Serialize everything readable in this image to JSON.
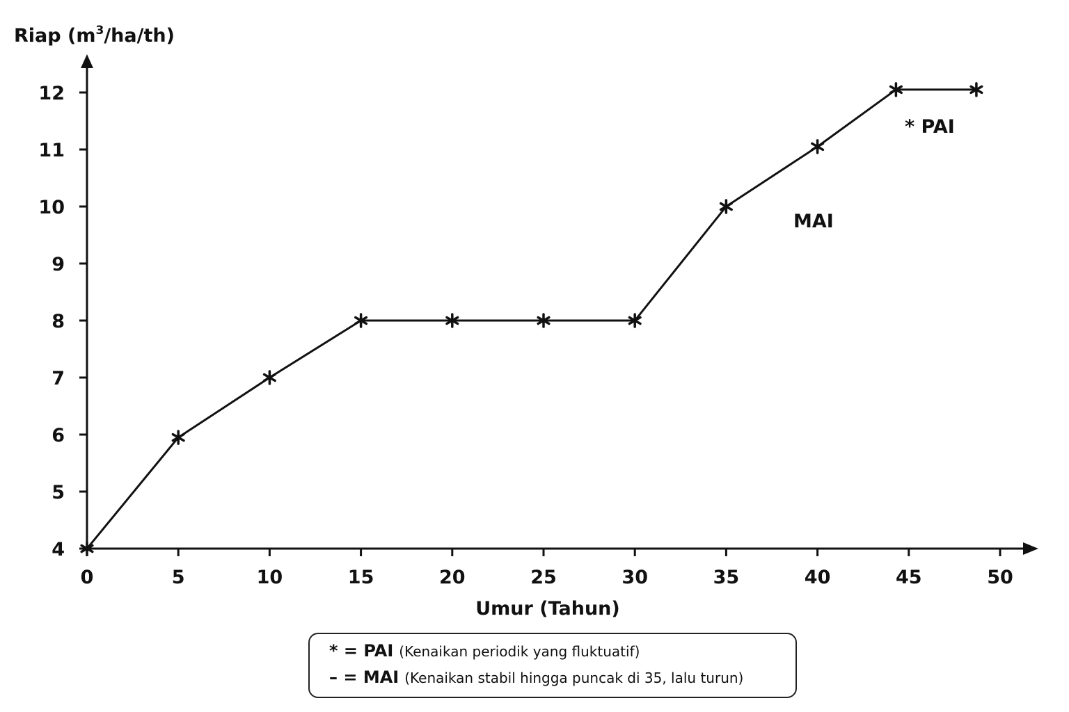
{
  "chart_data": {
    "type": "line",
    "ylabel_main": "Riap (m",
    "ylabel_sup": "3",
    "ylabel_tail": "/ha/th)",
    "xlabel": "Umur (Tahun)",
    "xlim": [
      0,
      50
    ],
    "ylim": [
      4,
      12
    ],
    "xticks": [
      "0",
      "5",
      "10",
      "15",
      "20",
      "25",
      "30",
      "35",
      "40",
      "45",
      "50"
    ],
    "yticks": [
      "4",
      "5",
      "6",
      "7",
      "8",
      "9",
      "10",
      "11",
      "12"
    ],
    "grid": false,
    "x": [
      0,
      5,
      10,
      15,
      20,
      25,
      30,
      35,
      40,
      44.3,
      48.7
    ],
    "y": [
      4,
      5.95,
      7,
      8,
      8,
      8,
      8,
      10,
      11.05,
      12.05,
      12.05
    ],
    "annotations": [
      {
        "id": "pai",
        "text": "* PAI"
      },
      {
        "id": "mai",
        "text": "MAI"
      }
    ],
    "legend": [
      {
        "key": "* = PAI",
        "desc": "(Kenaikan periodik yang fluktuatif)"
      },
      {
        "key": "– = MAI",
        "desc": "(Kenaikan stabil hingga puncak di 35, lalu turun)"
      }
    ],
    "line_color": "#111111"
  }
}
